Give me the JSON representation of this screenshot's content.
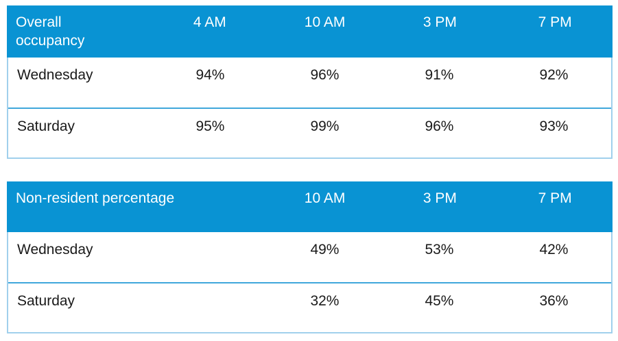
{
  "colors": {
    "header_background": "#0993d3",
    "header_text": "#ffffff",
    "body_text": "#1a1a1a",
    "outer_border": "#a0d0ec",
    "row_separator": "#3fa7db"
  },
  "chart_data": [
    {
      "type": "table",
      "title": "Overall occupancy",
      "columns": [
        "4 AM",
        "10 AM",
        "3 PM",
        "7 PM"
      ],
      "rows": [
        {
          "label": "Wednesday",
          "values": [
            "94%",
            "96%",
            "91%",
            "92%"
          ]
        },
        {
          "label": "Saturday",
          "values": [
            "95%",
            "99%",
            "96%",
            "93%"
          ]
        }
      ],
      "layout_hints": {
        "header_fill": "solid blue",
        "grid": "horizontal separators only",
        "value_alignment": "center"
      }
    },
    {
      "type": "table",
      "title": "Non-resident percentage",
      "columns": [
        "10 AM",
        "3 PM",
        "7 PM"
      ],
      "rows": [
        {
          "label": "Wednesday",
          "values": [
            "49%",
            "53%",
            "42%"
          ]
        },
        {
          "label": "Saturday",
          "values": [
            "32%",
            "45%",
            "36%"
          ]
        }
      ],
      "layout_hints": {
        "header_fill": "solid blue",
        "grid": "horizontal separators only",
        "value_alignment": "center"
      }
    }
  ]
}
